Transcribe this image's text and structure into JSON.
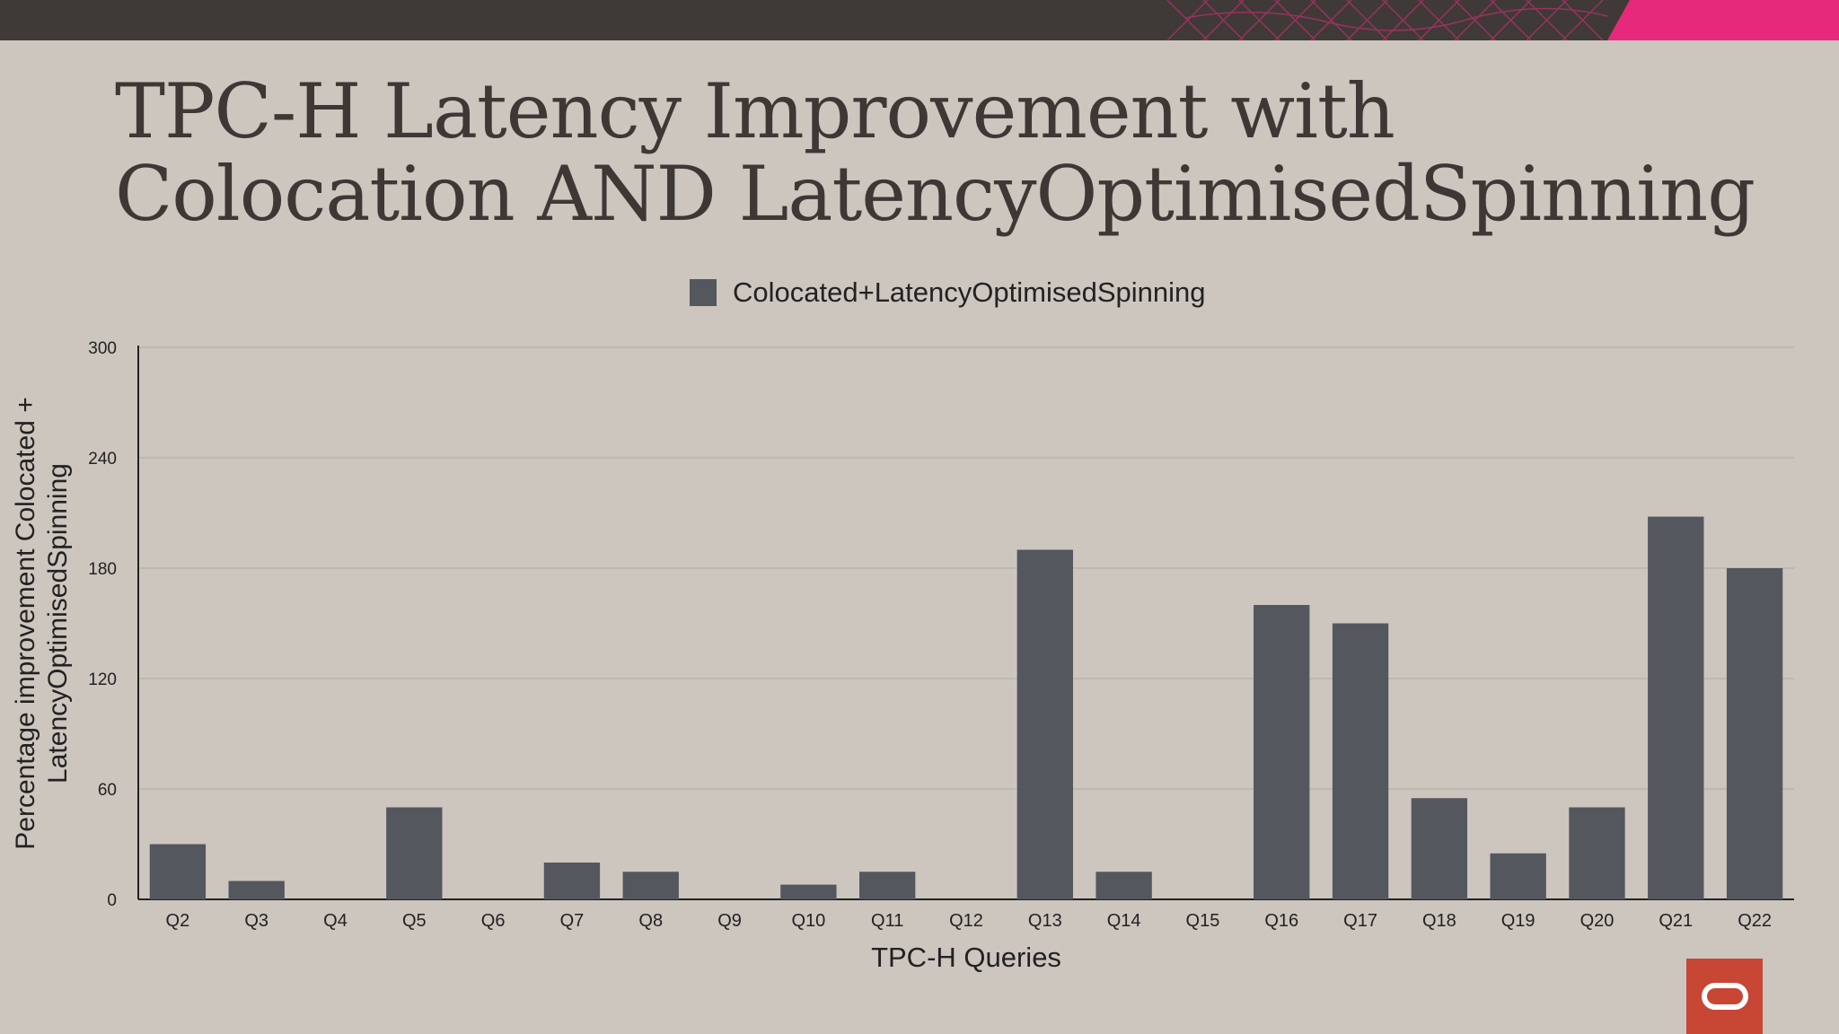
{
  "slide": {
    "title_lines": [
      "TPC-H Latency Improvement with",
      "Colocation AND LatencyOptimisedSpinning"
    ]
  },
  "brand": {
    "logo_icon": "oracle-logo-icon",
    "colors": {
      "topbar": "#3f3a37",
      "accent": "#e7297b",
      "logo": "#c74634",
      "background": "#ccc6bf"
    }
  },
  "chart_data": {
    "type": "bar",
    "categories": [
      "Q2",
      "Q3",
      "Q4",
      "Q5",
      "Q6",
      "Q7",
      "Q8",
      "Q9",
      "Q10",
      "Q11",
      "Q12",
      "Q13",
      "Q14",
      "Q15",
      "Q16",
      "Q17",
      "Q18",
      "Q19",
      "Q20",
      "Q21",
      "Q22"
    ],
    "series": [
      {
        "name": "Colocated+LatencyOptimisedSpinning",
        "color": "#55575e",
        "values": [
          30,
          10,
          0,
          50,
          0,
          20,
          15,
          0,
          8,
          15,
          0,
          190,
          15,
          0,
          160,
          150,
          55,
          25,
          50,
          208,
          180
        ]
      }
    ],
    "xlabel": "TPC-H Queries",
    "ylabel_lines": [
      "Percentage improvement Colocated +",
      "LatencyOptimisedSpinning"
    ],
    "ylim": [
      0,
      300
    ],
    "yticks": [
      "0",
      "60",
      "120",
      "180",
      "240",
      "300"
    ],
    "grid": true,
    "legend_position": "top-center"
  }
}
